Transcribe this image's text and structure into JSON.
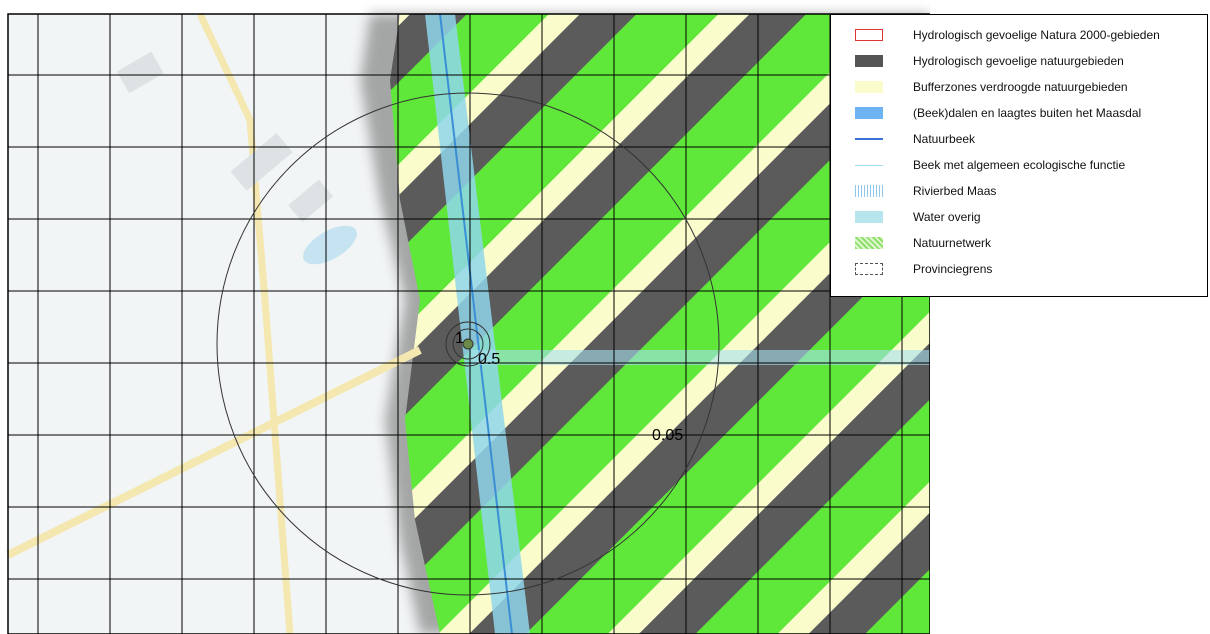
{
  "map": {
    "contour_labels": [
      "1",
      "0.5",
      "0.05"
    ]
  },
  "legend": {
    "items": [
      {
        "label": "Hydrologisch gevoelige Natura 2000-gebieden"
      },
      {
        "label": "Hydrologisch gevoelige natuurgebieden"
      },
      {
        "label": "Bufferzones verdroogde natuurgebieden"
      },
      {
        "label": "(Beek)dalen en laagtes buiten het Maasdal"
      },
      {
        "label": "Natuurbeek"
      },
      {
        "label": "Beek met algemeen ecologische functie"
      },
      {
        "label": "Rivierbed Maas"
      },
      {
        "label": "Water overig"
      },
      {
        "label": "Natuurnetwerk"
      },
      {
        "label": "Provinciegrens"
      }
    ]
  }
}
